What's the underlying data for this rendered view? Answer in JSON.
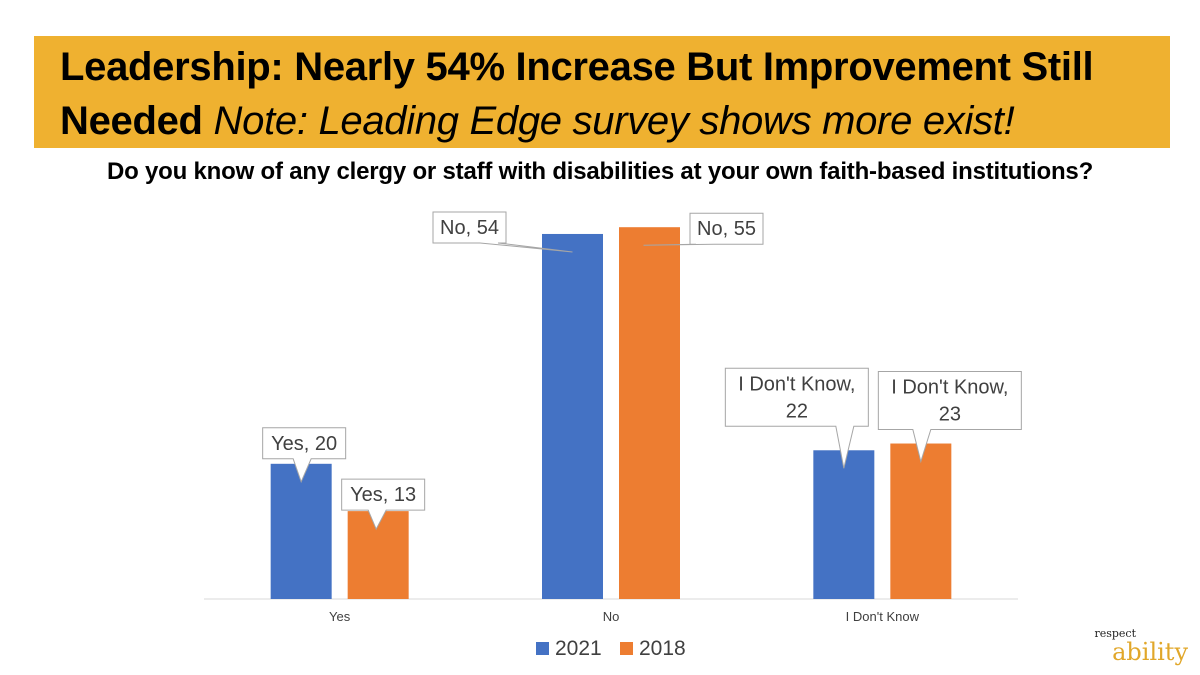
{
  "slide": {
    "title_line1": "Leadership: Nearly 54% Increase But Improvement Still",
    "title_line2_bold": "Needed",
    "title_line2_note": "Note: Leading Edge survey shows more exist!",
    "subtitle": "Do you know of any clergy or staff with disabilities at your own faith-based institutions?",
    "banner_color": "#efb130"
  },
  "logo": {
    "top_text": "respect",
    "bottom_text": "ability"
  },
  "chart_data": {
    "type": "bar",
    "categories": [
      "Yes",
      "No",
      "I Don't Know"
    ],
    "series": [
      {
        "name": "2021",
        "color": "#4472c4",
        "values": [
          20,
          54,
          22
        ],
        "data_labels": [
          [
            "Yes, 20"
          ],
          [
            "No, 54"
          ],
          [
            "I Don't Know,",
            "22"
          ]
        ]
      },
      {
        "name": "2018",
        "color": "#ed7d31",
        "values": [
          13,
          55,
          23
        ],
        "data_labels": [
          [
            "Yes, 13"
          ],
          [
            "No, 55"
          ],
          [
            "I Don't Know,",
            "23"
          ]
        ]
      }
    ],
    "ylim": [
      0,
      60
    ],
    "grid": false,
    "legend_position": "bottom"
  }
}
